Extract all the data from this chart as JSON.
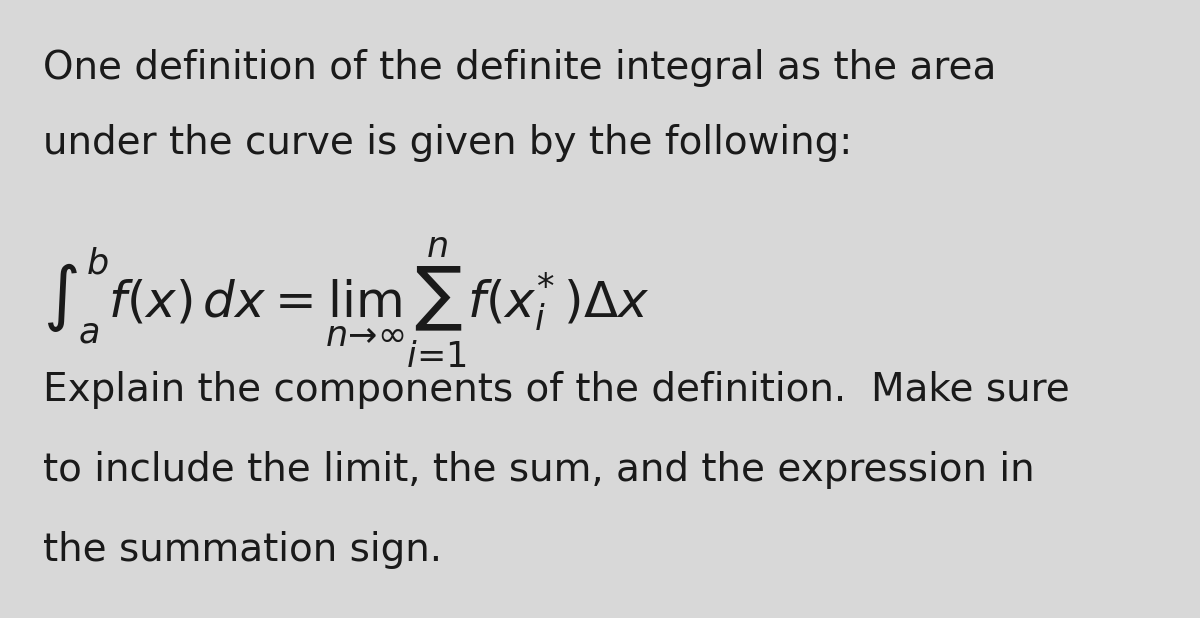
{
  "background_color": "#d8d8d8",
  "text_color": "#1a1a1a",
  "line1": "One definition of the definite integral as the area",
  "line2": "under the curve is given by the following:",
  "formula": "$\\int_a^b f(x)\\, dx = \\lim_{n \\to \\infty} \\sum_{i=1}^{n} f(x_i^*)\\Delta x$",
  "explain_line1": "Explain the components of the definition.  Make sure",
  "explain_line2": "to include the limit, the sum, and the expression in",
  "explain_line3": "the summation sign.",
  "text_fontsize": 28,
  "formula_fontsize": 36,
  "fig_width": 12.0,
  "fig_height": 6.18
}
